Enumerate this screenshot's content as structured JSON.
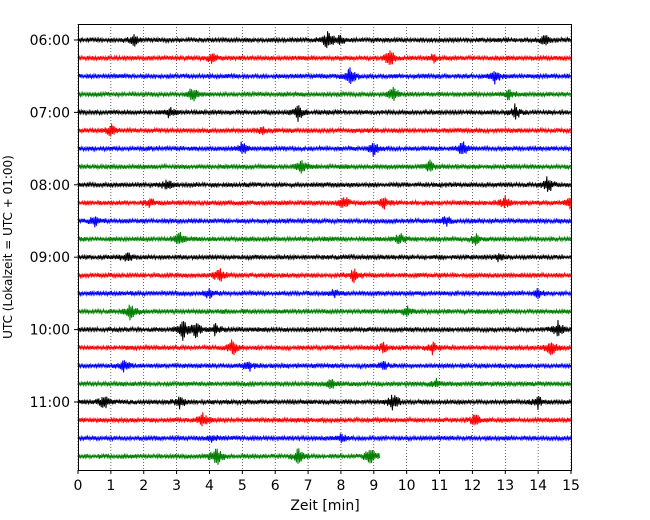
{
  "chart_data": {
    "type": "line",
    "title": "",
    "xlabel": "Zeit  [min]",
    "ylabel": "UTC (Lokalzeit = UTC + 01:00)",
    "xlim": [
      0,
      15
    ],
    "x_ticks": [
      "0",
      "1",
      "2",
      "3",
      "4",
      "5",
      "6",
      "7",
      "8",
      "9",
      "10",
      "11",
      "12",
      "13",
      "14",
      "15"
    ],
    "y_tick_labels": [
      "06:00",
      "07:00",
      "08:00",
      "09:00",
      "10:00",
      "11:00"
    ],
    "grid": "vertical dotted",
    "legend": "none",
    "trace_interval_minutes": 15,
    "trace_count": 24,
    "last_trace_end_minute": 9.2,
    "colors": [
      "#000000",
      "#ff0000",
      "#0000ff",
      "#008000"
    ],
    "series": [
      {
        "start_utc": "06:00",
        "color": "#000000",
        "events": [
          {
            "t": 1.7,
            "a": 0.55
          },
          {
            "t": 7.6,
            "a": 0.9
          },
          {
            "t": 8.0,
            "a": 0.5
          },
          {
            "t": 14.2,
            "a": 0.45
          }
        ]
      },
      {
        "start_utc": "06:15",
        "color": "#ff0000",
        "events": [
          {
            "t": 4.1,
            "a": 0.5
          },
          {
            "t": 9.5,
            "a": 0.85
          },
          {
            "t": 10.8,
            "a": 0.4
          }
        ]
      },
      {
        "start_utc": "06:30",
        "color": "#0000ff",
        "events": [
          {
            "t": 8.3,
            "a": 0.9
          },
          {
            "t": 12.7,
            "a": 0.7
          }
        ]
      },
      {
        "start_utc": "06:45",
        "color": "#008000",
        "events": [
          {
            "t": 3.5,
            "a": 0.7
          },
          {
            "t": 9.6,
            "a": 0.7
          },
          {
            "t": 13.1,
            "a": 0.5
          }
        ]
      },
      {
        "start_utc": "07:00",
        "color": "#000000",
        "events": [
          {
            "t": 2.8,
            "a": 0.5
          },
          {
            "t": 6.7,
            "a": 0.75
          },
          {
            "t": 13.3,
            "a": 0.7
          }
        ]
      },
      {
        "start_utc": "07:15",
        "color": "#ff0000",
        "events": [
          {
            "t": 1.0,
            "a": 0.5
          },
          {
            "t": 5.6,
            "a": 0.35
          }
        ]
      },
      {
        "start_utc": "07:30",
        "color": "#0000ff",
        "events": [
          {
            "t": 5.0,
            "a": 0.6
          },
          {
            "t": 9.0,
            "a": 0.75
          },
          {
            "t": 11.7,
            "a": 0.8
          }
        ]
      },
      {
        "start_utc": "07:45",
        "color": "#008000",
        "events": [
          {
            "t": 6.8,
            "a": 0.6
          },
          {
            "t": 10.7,
            "a": 0.6
          }
        ]
      },
      {
        "start_utc": "08:00",
        "color": "#000000",
        "events": [
          {
            "t": 2.7,
            "a": 0.5
          },
          {
            "t": 14.3,
            "a": 0.8
          }
        ]
      },
      {
        "start_utc": "08:15",
        "color": "#ff0000",
        "events": [
          {
            "t": 2.2,
            "a": 0.45
          },
          {
            "t": 8.1,
            "a": 0.6
          },
          {
            "t": 9.3,
            "a": 0.55
          },
          {
            "t": 13.0,
            "a": 0.6
          },
          {
            "t": 15.0,
            "a": 0.6
          }
        ]
      },
      {
        "start_utc": "08:30",
        "color": "#0000ff",
        "events": [
          {
            "t": 0.5,
            "a": 0.5
          },
          {
            "t": 11.2,
            "a": 0.5
          }
        ]
      },
      {
        "start_utc": "08:45",
        "color": "#008000",
        "events": [
          {
            "t": 3.1,
            "a": 0.55
          },
          {
            "t": 9.8,
            "a": 0.55
          },
          {
            "t": 12.1,
            "a": 0.5
          }
        ]
      },
      {
        "start_utc": "09:00",
        "color": "#000000",
        "events": [
          {
            "t": 1.5,
            "a": 0.5
          },
          {
            "t": 12.8,
            "a": 0.3
          }
        ]
      },
      {
        "start_utc": "09:15",
        "color": "#ff0000",
        "events": [
          {
            "t": 4.3,
            "a": 0.7
          },
          {
            "t": 8.4,
            "a": 0.7
          }
        ]
      },
      {
        "start_utc": "09:30",
        "color": "#0000ff",
        "events": [
          {
            "t": 4.0,
            "a": 0.5
          },
          {
            "t": 7.8,
            "a": 0.45
          },
          {
            "t": 14.0,
            "a": 0.4
          }
        ]
      },
      {
        "start_utc": "09:45",
        "color": "#008000",
        "events": [
          {
            "t": 1.6,
            "a": 0.9
          },
          {
            "t": 10.0,
            "a": 0.5
          }
        ]
      },
      {
        "start_utc": "10:00",
        "color": "#000000",
        "events": [
          {
            "t": 3.2,
            "a": 0.9
          },
          {
            "t": 3.6,
            "a": 0.8
          },
          {
            "t": 4.2,
            "a": 0.6
          },
          {
            "t": 14.6,
            "a": 0.85
          }
        ]
      },
      {
        "start_utc": "10:15",
        "color": "#ff0000",
        "events": [
          {
            "t": 4.7,
            "a": 0.9
          },
          {
            "t": 9.3,
            "a": 0.55
          },
          {
            "t": 10.8,
            "a": 0.55
          },
          {
            "t": 14.4,
            "a": 0.8
          }
        ]
      },
      {
        "start_utc": "10:30",
        "color": "#0000ff",
        "events": [
          {
            "t": 1.4,
            "a": 0.55
          },
          {
            "t": 5.2,
            "a": 0.5
          },
          {
            "t": 9.3,
            "a": 0.45
          }
        ]
      },
      {
        "start_utc": "10:45",
        "color": "#008000",
        "events": [
          {
            "t": 7.7,
            "a": 0.45
          },
          {
            "t": 10.9,
            "a": 0.4
          }
        ]
      },
      {
        "start_utc": "11:00",
        "color": "#000000",
        "events": [
          {
            "t": 0.8,
            "a": 0.65
          },
          {
            "t": 3.1,
            "a": 0.6
          },
          {
            "t": 9.6,
            "a": 0.85
          },
          {
            "t": 14.0,
            "a": 0.55
          }
        ]
      },
      {
        "start_utc": "11:15",
        "color": "#ff0000",
        "events": [
          {
            "t": 3.8,
            "a": 0.7
          },
          {
            "t": 12.1,
            "a": 0.6
          }
        ]
      },
      {
        "start_utc": "11:30",
        "color": "#0000ff",
        "events": [
          {
            "t": 4.1,
            "a": 0.35
          },
          {
            "t": 8.0,
            "a": 0.35
          }
        ]
      },
      {
        "start_utc": "11:45",
        "color": "#008000",
        "events": [
          {
            "t": 4.2,
            "a": 1.0
          },
          {
            "t": 6.7,
            "a": 0.7
          },
          {
            "t": 8.9,
            "a": 0.9
          }
        ]
      }
    ]
  }
}
